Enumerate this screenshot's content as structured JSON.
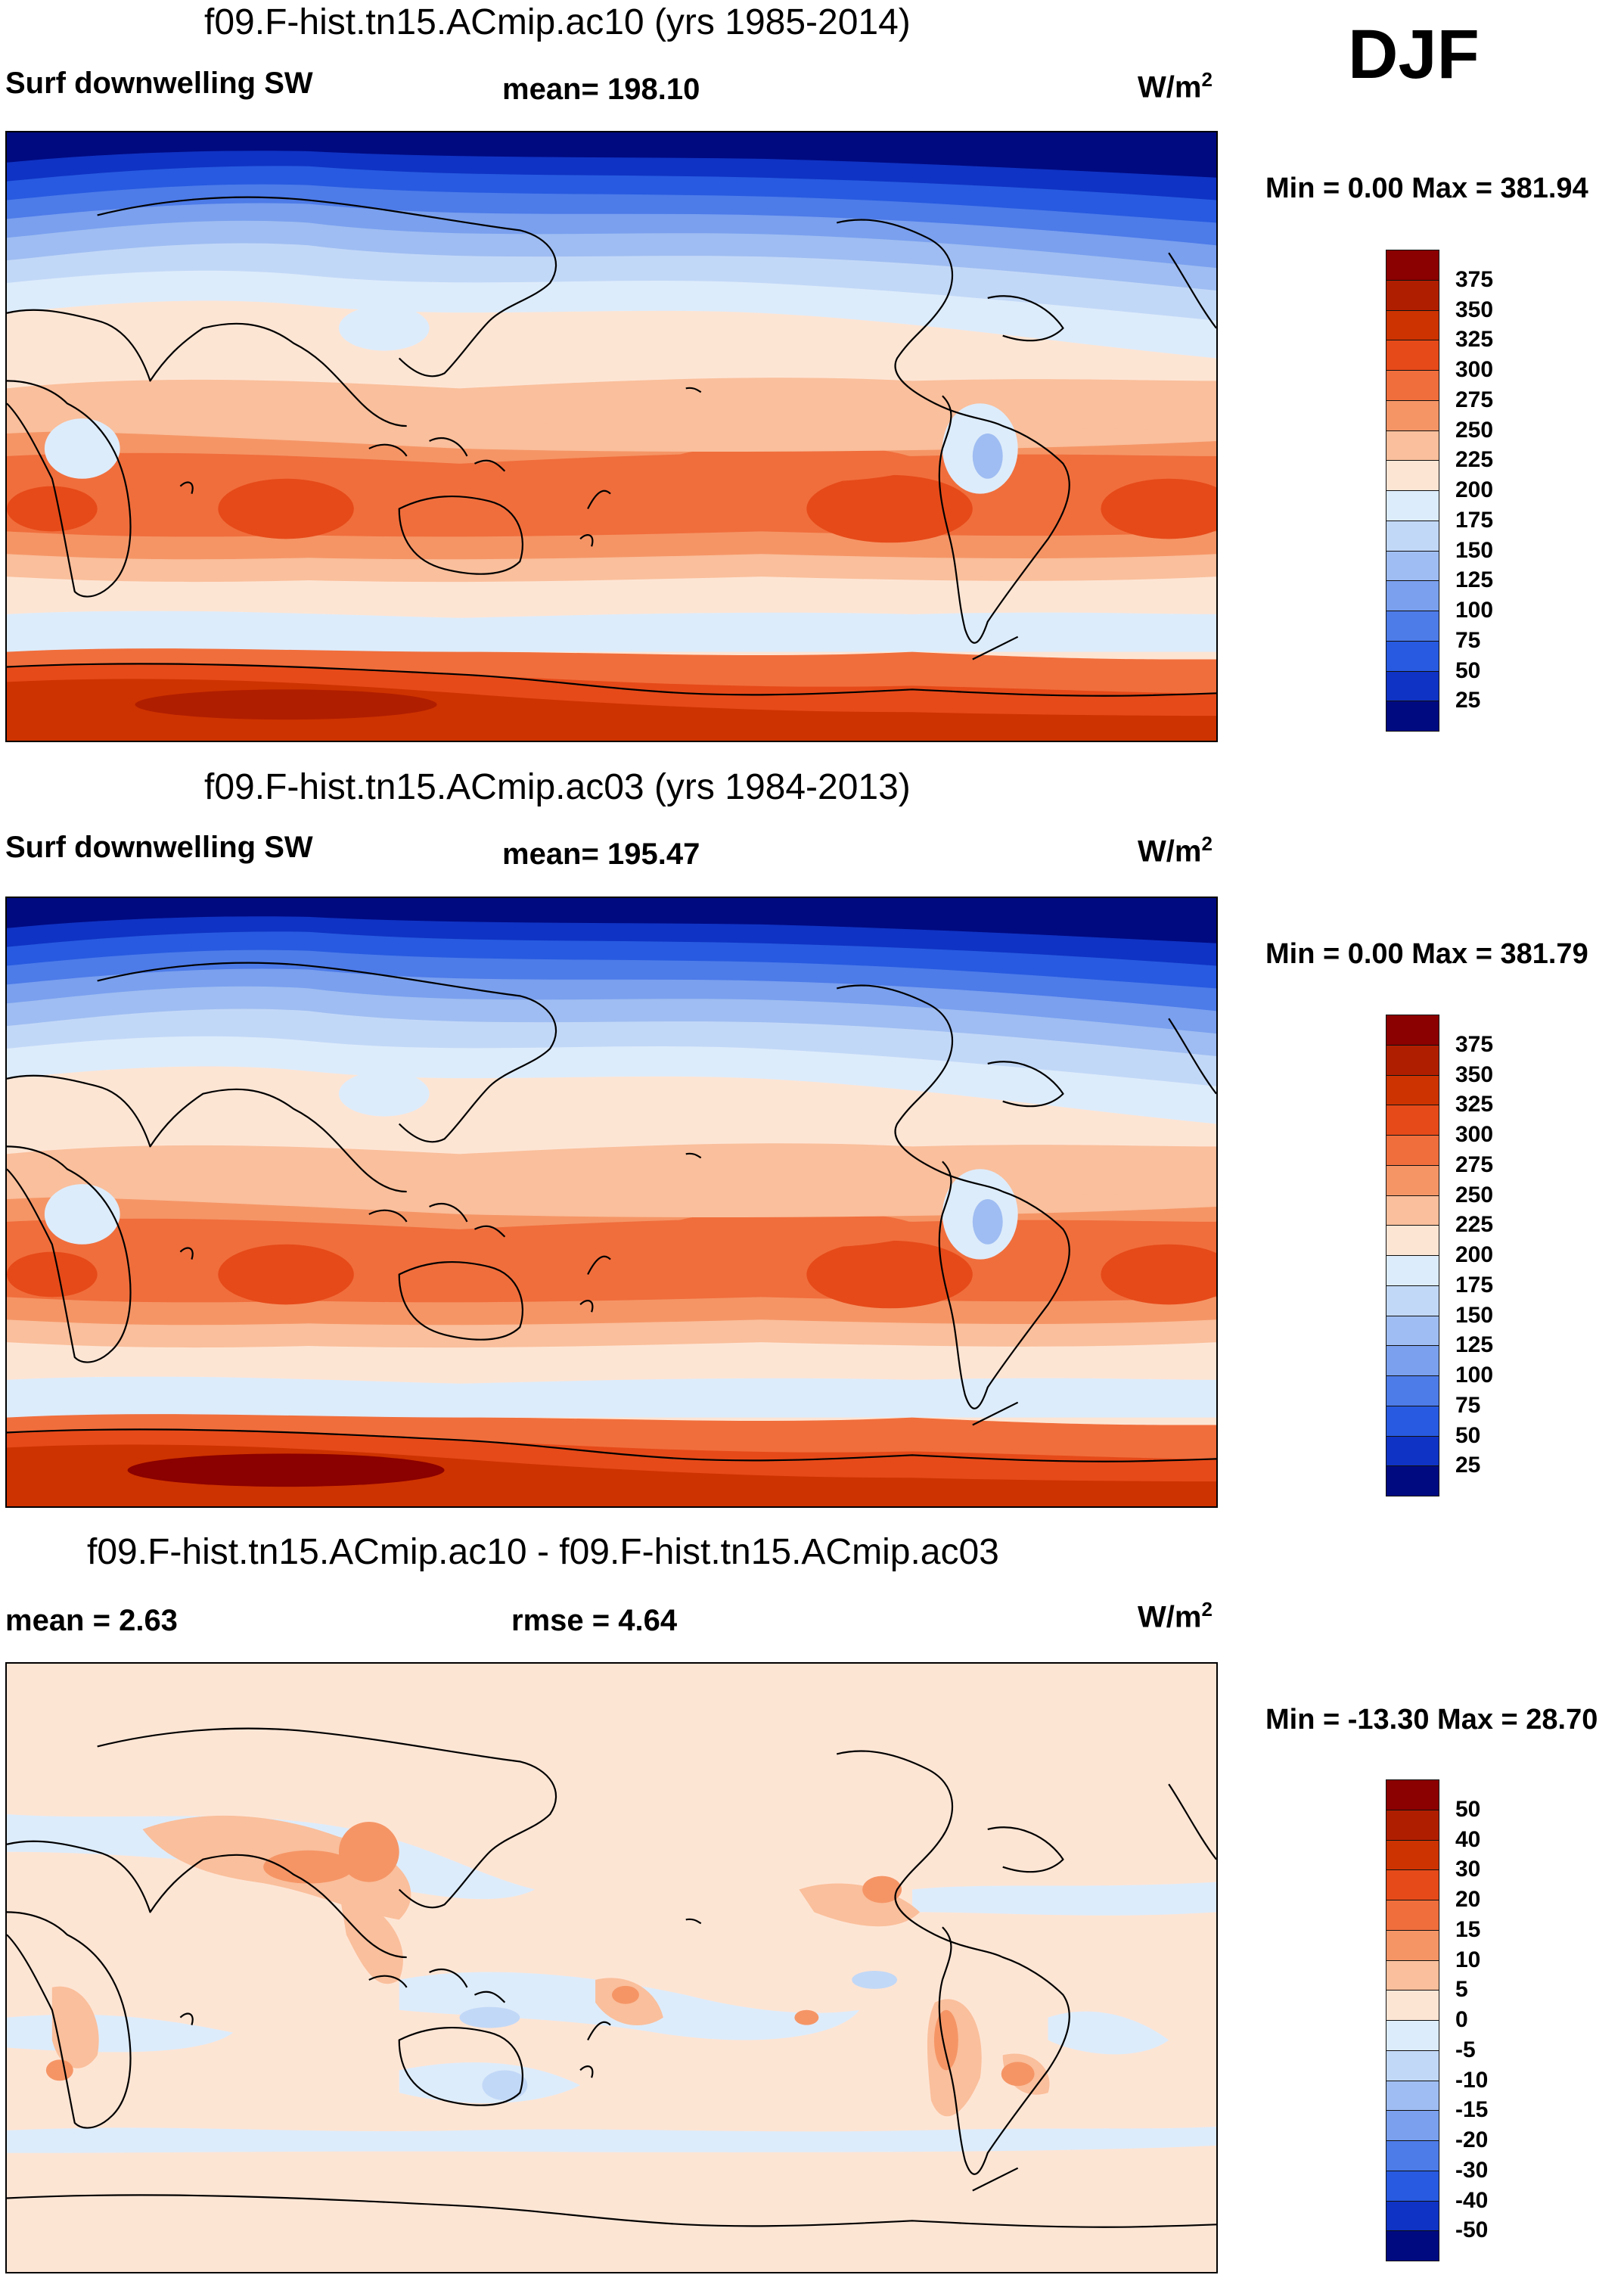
{
  "season": "DJF",
  "panels": [
    {
      "title": "f09.F-hist.tn15.ACmip.ac10 (yrs 1985-2014)",
      "left_label": "Surf downwelling SW",
      "center_label": "mean= 198.10",
      "units": "W/m",
      "units_sup": "2",
      "minmax": "Min =   0.00 Max = 381.94",
      "kind": "abs"
    },
    {
      "title": "f09.F-hist.tn15.ACmip.ac03 (yrs 1984-2013)",
      "left_label": "Surf downwelling SW",
      "center_label": "mean= 195.47",
      "units": "W/m",
      "units_sup": "2",
      "minmax": "Min =   0.00 Max = 381.79",
      "kind": "abs"
    },
    {
      "title": "f09.F-hist.tn15.ACmip.ac10 - f09.F-hist.tn15.ACmip.ac03",
      "left_label": "mean =   2.63",
      "center_label": "rmse =    4.64",
      "units": "W/m",
      "units_sup": "2",
      "minmax": "Min = -13.30 Max =  28.70",
      "kind": "diff"
    }
  ],
  "colorbars": {
    "abs": {
      "labels": [
        "375",
        "350",
        "325",
        "300",
        "275",
        "250",
        "225",
        "200",
        "175",
        "150",
        "125",
        "100",
        "75",
        "50",
        "25"
      ],
      "colors": [
        "#8b0000",
        "#b01e00",
        "#cd3300",
        "#e64a19",
        "#f06e3c",
        "#f59566",
        "#fabf9c",
        "#fde5d4",
        "#ddecfb",
        "#c2d8f7",
        "#9fbdf2",
        "#7aa0ee",
        "#4d7be8",
        "#275ae0",
        "#0f33c4",
        "#000a80"
      ]
    },
    "diff": {
      "labels": [
        "50",
        "40",
        "30",
        "20",
        "15",
        "10",
        "5",
        "0",
        "-5",
        "-10",
        "-15",
        "-20",
        "-30",
        "-40",
        "-50"
      ],
      "colors": [
        "#8b0000",
        "#b01e00",
        "#cd3300",
        "#e64a19",
        "#f06e3c",
        "#f59566",
        "#fabf9c",
        "#fde5d4",
        "#ddecfb",
        "#c2d8f7",
        "#9fbdf2",
        "#7aa0ee",
        "#4d7be8",
        "#275ae0",
        "#0f33c4",
        "#000a80"
      ]
    }
  }
}
